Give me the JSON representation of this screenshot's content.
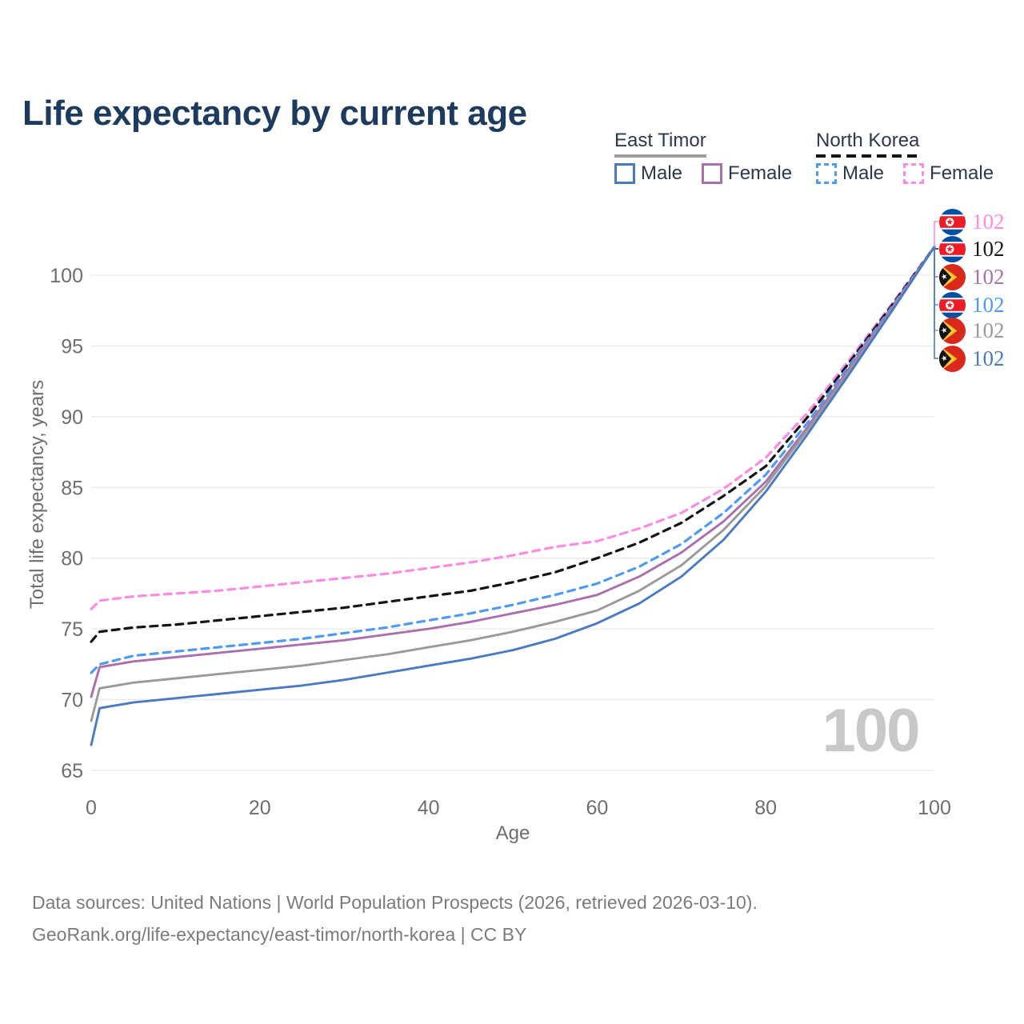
{
  "title": "Life expectancy by current age",
  "legend": {
    "groups": [
      {
        "label": "East Timor",
        "line_style": "solid",
        "underline_color": "#9e9e9e",
        "items": [
          {
            "label": "Male",
            "color": "#4a7ac2",
            "dashed": false
          },
          {
            "label": "Female",
            "color": "#ab6fae",
            "dashed": false
          }
        ]
      },
      {
        "label": "North Korea",
        "line_style": "dashed",
        "underline_color": "#141414",
        "items": [
          {
            "label": "Male",
            "color": "#4d9bf5",
            "dashed": true
          },
          {
            "label": "Female",
            "color": "#fc8be4",
            "dashed": true
          }
        ]
      }
    ]
  },
  "chart_data": {
    "type": "line",
    "title": "Life expectancy by current age",
    "xlabel": "Age",
    "ylabel": "Total life expectancy, years",
    "x_ticks": [
      0,
      20,
      40,
      60,
      80,
      100
    ],
    "y_ticks": [
      65,
      70,
      75,
      80,
      85,
      90,
      95,
      100
    ],
    "xlim": [
      0,
      100
    ],
    "ylim": [
      63.5,
      104
    ],
    "grid": true,
    "legend_position": "top-right",
    "x": [
      0,
      1,
      5,
      10,
      15,
      20,
      25,
      30,
      35,
      40,
      45,
      50,
      55,
      60,
      65,
      70,
      75,
      80,
      85,
      90,
      95,
      100
    ],
    "series": [
      {
        "name": "North Korea Female",
        "country": "North Korea",
        "sex": "Female",
        "color": "#fc8be4",
        "dashed": true,
        "values": [
          76.4,
          77.0,
          77.3,
          77.5,
          77.7,
          78.0,
          78.3,
          78.6,
          78.9,
          79.3,
          79.7,
          80.2,
          80.8,
          81.2,
          82.1,
          83.2,
          84.9,
          87.1,
          90.3,
          94.1,
          98.0,
          102
        ]
      },
      {
        "name": "North Korea Both sexes",
        "country": "North Korea",
        "sex": "Both",
        "color": "#141414",
        "dashed": true,
        "values": [
          74.1,
          74.8,
          75.1,
          75.3,
          75.6,
          75.9,
          76.2,
          76.5,
          76.9,
          77.3,
          77.7,
          78.3,
          79.0,
          80.0,
          81.1,
          82.5,
          84.4,
          86.5,
          90.0,
          93.9,
          97.9,
          102
        ]
      },
      {
        "name": "North Korea Male",
        "country": "North Korea",
        "sex": "Male",
        "color": "#4d9bf5",
        "dashed": true,
        "values": [
          71.9,
          72.5,
          73.1,
          73.4,
          73.7,
          74.0,
          74.3,
          74.7,
          75.1,
          75.6,
          76.1,
          76.7,
          77.4,
          78.2,
          79.4,
          81.0,
          83.2,
          85.9,
          89.6,
          93.7,
          97.8,
          102
        ]
      },
      {
        "name": "East Timor Female",
        "country": "East Timor",
        "sex": "Female",
        "color": "#ab6fae",
        "dashed": false,
        "values": [
          70.2,
          72.3,
          72.7,
          73.0,
          73.3,
          73.6,
          73.9,
          74.2,
          74.6,
          75.0,
          75.5,
          76.1,
          76.7,
          77.4,
          78.7,
          80.4,
          82.6,
          85.4,
          89.3,
          93.5,
          97.7,
          102
        ]
      },
      {
        "name": "East Timor Both sexes",
        "country": "East Timor",
        "sex": "Both",
        "color": "#9a9a9a",
        "dashed": false,
        "values": [
          68.5,
          70.8,
          71.2,
          71.5,
          71.8,
          72.1,
          72.4,
          72.8,
          73.2,
          73.7,
          74.2,
          74.8,
          75.5,
          76.3,
          77.7,
          79.5,
          82.0,
          85.1,
          89.1,
          93.3,
          97.6,
          102
        ]
      },
      {
        "name": "East Timor Male",
        "country": "East Timor",
        "sex": "Male",
        "color": "#4a7ac2",
        "dashed": false,
        "values": [
          66.8,
          69.4,
          69.8,
          70.1,
          70.4,
          70.7,
          71.0,
          71.4,
          71.9,
          72.4,
          72.9,
          73.5,
          74.3,
          75.4,
          76.8,
          78.7,
          81.3,
          84.7,
          88.8,
          93.1,
          97.5,
          102
        ]
      }
    ]
  },
  "endpoint_labels": [
    {
      "value": "102",
      "flag": "north-korea",
      "color": "#fc8be4"
    },
    {
      "value": "102",
      "flag": "north-korea",
      "color": "#1a1a1a"
    },
    {
      "value": "102",
      "flag": "east-timor",
      "color": "#ab6fae"
    },
    {
      "value": "102",
      "flag": "north-korea",
      "color": "#4d9bf5"
    },
    {
      "value": "102",
      "flag": "east-timor",
      "color": "#9a9a9a"
    },
    {
      "value": "102",
      "flag": "east-timor",
      "color": "#4a7ac2"
    }
  ],
  "watermark": "100",
  "footer": {
    "line1": "Data sources: United Nations | World Population Prospects (2026, retrieved 2026-03-10).",
    "line2": "GeoRank.org/life-expectancy/east-timor/north-korea | CC BY"
  }
}
